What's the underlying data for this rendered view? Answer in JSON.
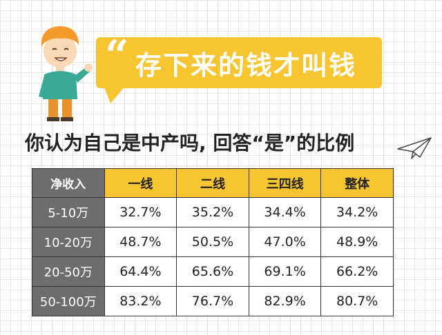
{
  "bubble": {
    "quote_mark": "“",
    "text": "存下来的钱才叫钱"
  },
  "heading": "你认为自己是中产吗, 回答“是”的比例",
  "colors": {
    "accent": "#f7c531",
    "row_header": "#6d6d6d",
    "grid": "#e6e6e6"
  },
  "illustration": {
    "person": "cartoon-boy-icon",
    "plane": "paper-plane-icon"
  },
  "table": {
    "corner_label": "净收入",
    "columns": [
      "一线",
      "二线",
      "三四线",
      "整体"
    ],
    "rows": [
      {
        "label": "5-10万",
        "cells": [
          "32.7%",
          "35.2%",
          "34.4%",
          "34.2%"
        ]
      },
      {
        "label": "10-20万",
        "cells": [
          "48.7%",
          "50.5%",
          "47.0%",
          "48.9%"
        ]
      },
      {
        "label": "20-50万",
        "cells": [
          "64.4%",
          "65.6%",
          "69.1%",
          "66.2%"
        ]
      },
      {
        "label": "50-100万",
        "cells": [
          "83.2%",
          "76.7%",
          "82.9%",
          "80.7%"
        ]
      }
    ]
  }
}
